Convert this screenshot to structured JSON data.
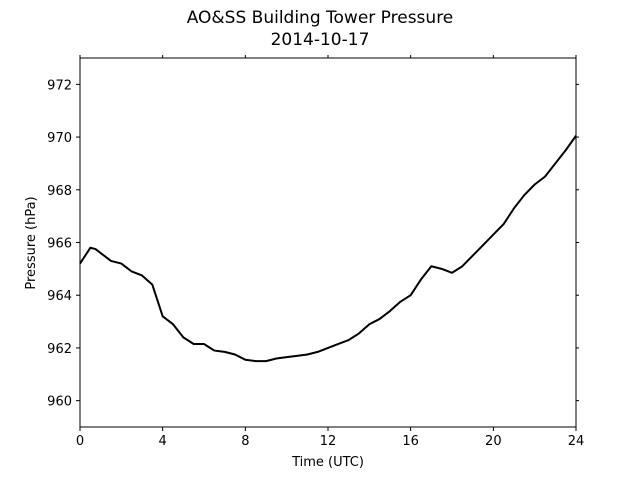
{
  "chart_data": {
    "type": "line",
    "title": "AO&SS Building Tower Pressure",
    "subtitle": "2014-10-17",
    "xlabel": "Time (UTC)",
    "ylabel": "Pressure (hPa)",
    "xlim": [
      0,
      24
    ],
    "ylim": [
      959,
      973
    ],
    "xticks": [
      0,
      4,
      8,
      12,
      16,
      20,
      24
    ],
    "yticks": [
      960,
      962,
      964,
      966,
      968,
      970,
      972
    ],
    "grid": false,
    "line_color": "#000000",
    "x": [
      0,
      0.25,
      0.5,
      0.75,
      1,
      1.5,
      2,
      2.5,
      3,
      3.5,
      4,
      4.5,
      5,
      5.5,
      6,
      6.5,
      7,
      7.5,
      8,
      8.5,
      9,
      9.5,
      10,
      10.5,
      11,
      11.5,
      12,
      12.5,
      13,
      13.5,
      14,
      14.5,
      15,
      15.5,
      16,
      16.5,
      17,
      17.5,
      18,
      18.5,
      19,
      19.5,
      20,
      20.5,
      21,
      21.5,
      22,
      22.5,
      23,
      23.5,
      24
    ],
    "y": [
      965.2,
      965.5,
      965.8,
      965.75,
      965.6,
      965.3,
      965.2,
      964.9,
      964.75,
      964.4,
      963.2,
      962.9,
      962.4,
      962.15,
      962.15,
      961.9,
      961.85,
      961.75,
      961.55,
      961.5,
      961.5,
      961.6,
      961.65,
      961.7,
      961.75,
      961.85,
      962.0,
      962.15,
      962.3,
      962.55,
      962.9,
      963.1,
      963.4,
      963.75,
      964.0,
      964.6,
      965.1,
      965.0,
      964.85,
      965.1,
      965.5,
      965.9,
      966.3,
      966.7,
      967.3,
      967.8,
      968.2,
      968.5,
      969.0,
      969.5,
      970.05
    ]
  }
}
